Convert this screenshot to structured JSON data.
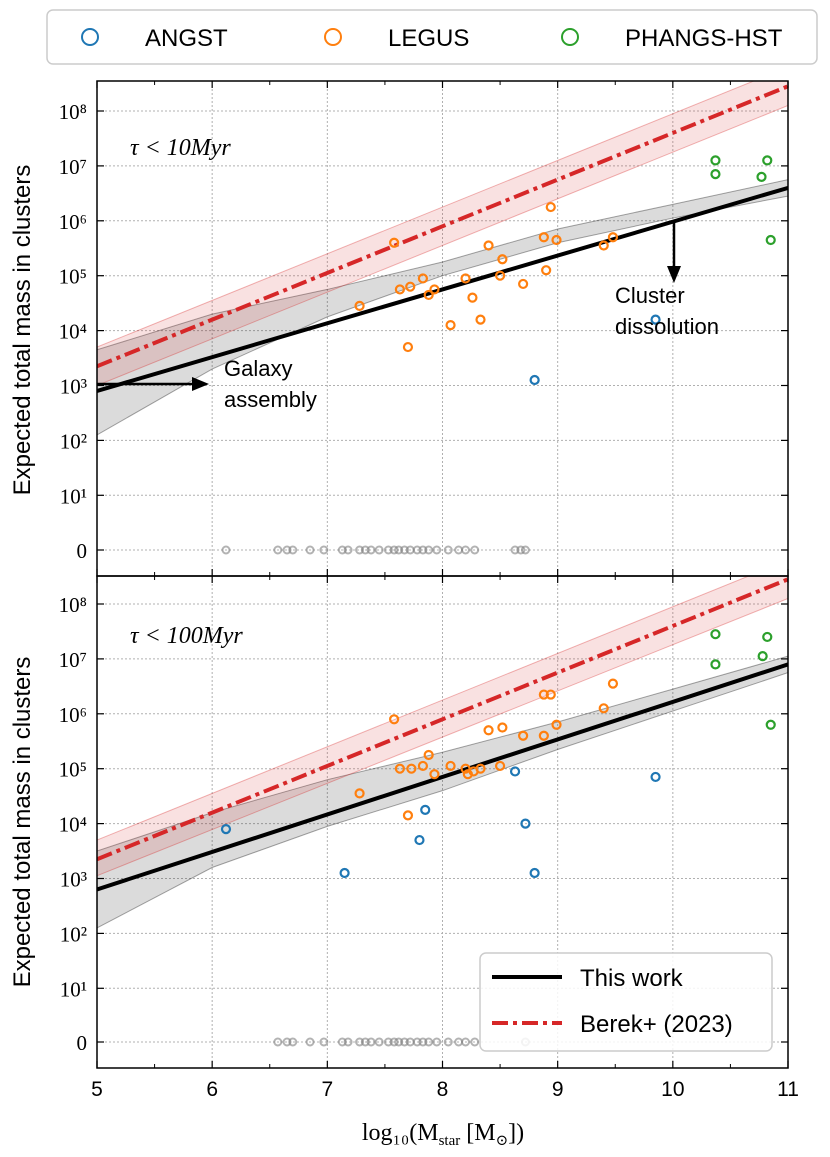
{
  "figure": {
    "y_label": "Expected total mass in clusters",
    "x_label": "log₁₀(M",
    "x_label_sub": "star",
    "x_label_unit": " [M",
    "x_label_unit_sub": "⊙",
    "x_label_close": "])",
    "legend_top": [
      "ANGST",
      "LEGUS",
      "PHANGS-HST"
    ],
    "legend_bottom": [
      "This work",
      "Berek+ (2023)"
    ],
    "colors": {
      "ANGST": "#1f77b4",
      "LEGUS": "#ff7f0e",
      "PHANGS-HST": "#2ca02c",
      "this_work": "#000000",
      "berek": "#d62728",
      "zero_points": "#808080"
    }
  },
  "chart_data": [
    {
      "type": "scatter",
      "panel": "top",
      "label": "τ < 10Myr",
      "annotations": [
        "Galaxy",
        "assembly",
        "Cluster",
        "dissolution"
      ],
      "x_ticks": [
        "5",
        "6",
        "7",
        "8",
        "9",
        "10",
        "11"
      ],
      "y_ticks": [
        "0",
        "10¹",
        "10²",
        "10³",
        "10⁴",
        "10⁵",
        "10⁶",
        "10⁷",
        "10⁸"
      ],
      "xlim": [
        5,
        11
      ],
      "y_scale": "symlog (zero row + log decades 10^1–10^8)",
      "grid": true,
      "lines": {
        "this_work": {
          "x": [
            5,
            11
          ],
          "log10_y": [
            2.9,
            6.6
          ]
        },
        "this_work_band": {
          "x": [
            5,
            6,
            7,
            8,
            9,
            10,
            11
          ],
          "log10_low": [
            2.1,
            3.3,
            4.25,
            5.0,
            5.6,
            6.05,
            6.45
          ],
          "log10_high": [
            3.65,
            4.3,
            4.75,
            5.25,
            5.85,
            6.3,
            6.75
          ]
        },
        "berek": {
          "x": [
            5,
            11
          ],
          "log10_y": [
            3.35,
            8.45
          ]
        },
        "berek_band": {
          "x": [
            5,
            11
          ],
          "log10_low": [
            3.0,
            8.1
          ],
          "log10_high": [
            3.7,
            8.8
          ]
        }
      },
      "series": [
        {
          "name": "ANGST",
          "points": [
            [
              8.8,
              3.1
            ],
            [
              9.85,
              4.2
            ]
          ]
        },
        {
          "name": "LEGUS",
          "points": [
            [
              7.28,
              4.45
            ],
            [
              7.58,
              5.6
            ],
            [
              7.63,
              4.75
            ],
            [
              7.72,
              4.8
            ],
            [
              7.83,
              4.95
            ],
            [
              7.88,
              4.65
            ],
            [
              7.93,
              4.75
            ],
            [
              7.7,
              3.7
            ],
            [
              8.07,
              4.1
            ],
            [
              8.2,
              4.95
            ],
            [
              8.26,
              4.6
            ],
            [
              8.33,
              4.2
            ],
            [
              8.4,
              5.55
            ],
            [
              8.5,
              5.0
            ],
            [
              8.52,
              5.3
            ],
            [
              8.7,
              4.85
            ],
            [
              8.88,
              5.7
            ],
            [
              8.9,
              5.1
            ],
            [
              8.94,
              6.25
            ],
            [
              8.99,
              5.65
            ],
            [
              9.4,
              5.55
            ],
            [
              9.48,
              5.7
            ]
          ]
        },
        {
          "name": "PHANGS-HST",
          "points": [
            [
              10.37,
              7.1
            ],
            [
              10.37,
              6.85
            ],
            [
              10.77,
              6.8
            ],
            [
              10.82,
              7.1
            ],
            [
              10.85,
              5.65
            ]
          ]
        },
        {
          "name": "zero",
          "x": [
            6.12,
            6.57,
            6.65,
            6.7,
            6.85,
            6.97,
            7.13,
            7.18,
            7.28,
            7.33,
            7.38,
            7.45,
            7.53,
            7.58,
            7.62,
            7.67,
            7.72,
            7.78,
            7.83,
            7.88,
            7.95,
            8.05,
            8.14,
            8.2,
            8.28,
            8.63,
            8.68,
            8.72
          ]
        }
      ]
    },
    {
      "type": "scatter",
      "panel": "bottom",
      "label": "τ < 100Myr",
      "x_ticks": [
        "5",
        "6",
        "7",
        "8",
        "9",
        "10",
        "11"
      ],
      "y_ticks": [
        "0",
        "10¹",
        "10²",
        "10³",
        "10⁴",
        "10⁵",
        "10⁶",
        "10⁷",
        "10⁸"
      ],
      "xlim": [
        5,
        11
      ],
      "y_scale": "symlog (zero row + log decades 10^1–10^8)",
      "grid": true,
      "legend_position": "lower right",
      "lines": {
        "this_work": {
          "x": [
            5,
            11
          ],
          "log10_y": [
            2.8,
            6.9
          ]
        },
        "this_work_band": {
          "x": [
            5,
            6,
            7,
            8,
            9,
            10,
            11
          ],
          "log10_low": [
            2.1,
            3.2,
            3.95,
            4.6,
            5.35,
            6.05,
            6.75
          ],
          "log10_high": [
            3.5,
            4.2,
            4.8,
            5.3,
            5.85,
            6.45,
            7.05
          ]
        },
        "berek": {
          "x": [
            5,
            11
          ],
          "log10_y": [
            3.35,
            8.45
          ]
        },
        "berek_band": {
          "x": [
            5,
            11
          ],
          "log10_low": [
            3.05,
            8.1
          ],
          "log10_high": [
            3.7,
            8.8
          ]
        }
      },
      "series": [
        {
          "name": "ANGST",
          "points": [
            [
              6.12,
              3.9
            ],
            [
              7.15,
              3.1
            ],
            [
              7.8,
              3.7
            ],
            [
              7.85,
              4.25
            ],
            [
              8.63,
              4.95
            ],
            [
              8.72,
              4.0
            ],
            [
              8.8,
              3.1
            ],
            [
              9.85,
              4.85
            ]
          ]
        },
        {
          "name": "LEGUS",
          "points": [
            [
              7.28,
              4.55
            ],
            [
              7.58,
              5.9
            ],
            [
              7.63,
              5.0
            ],
            [
              7.7,
              4.15
            ],
            [
              7.73,
              5.0
            ],
            [
              7.83,
              5.05
            ],
            [
              7.88,
              5.25
            ],
            [
              7.93,
              4.9
            ],
            [
              8.07,
              5.05
            ],
            [
              8.2,
              5.0
            ],
            [
              8.22,
              4.9
            ],
            [
              8.27,
              4.95
            ],
            [
              8.33,
              5.0
            ],
            [
              8.4,
              5.7
            ],
            [
              8.5,
              5.05
            ],
            [
              8.52,
              5.75
            ],
            [
              8.7,
              5.6
            ],
            [
              8.88,
              5.6
            ],
            [
              8.88,
              6.35
            ],
            [
              8.94,
              6.35
            ],
            [
              8.99,
              5.8
            ],
            [
              9.4,
              6.1
            ],
            [
              9.48,
              6.55
            ]
          ]
        },
        {
          "name": "PHANGS-HST",
          "points": [
            [
              10.37,
              7.45
            ],
            [
              10.37,
              6.9
            ],
            [
              10.78,
              7.05
            ],
            [
              10.82,
              7.4
            ],
            [
              10.85,
              5.8
            ]
          ]
        },
        {
          "name": "zero",
          "x": [
            6.57,
            6.65,
            6.7,
            6.85,
            6.97,
            7.13,
            7.18,
            7.28,
            7.33,
            7.38,
            7.45,
            7.53,
            7.58,
            7.62,
            7.67,
            7.72,
            7.78,
            7.83,
            7.88,
            7.95,
            8.05,
            8.14,
            8.2,
            8.28,
            8.72
          ]
        }
      ]
    }
  ]
}
